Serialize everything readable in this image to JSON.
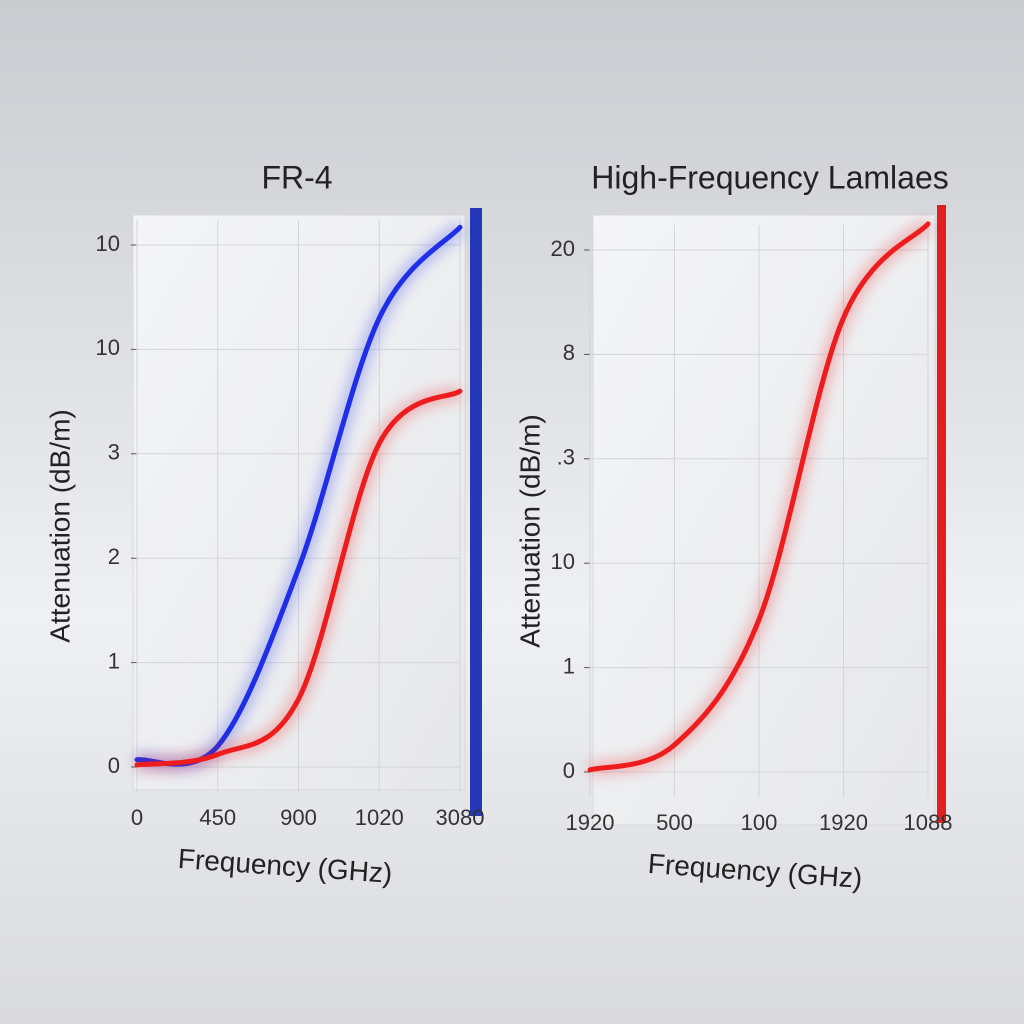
{
  "chart_data": [
    {
      "type": "line",
      "title": "FR-4",
      "x_label": "Frequency (GHz)",
      "y_label": "Attenuation (dB/m)",
      "categories": [
        "0",
        "450",
        "900",
        "1020",
        "3080"
      ],
      "y_labels": [
        "0",
        "1",
        "2",
        "3",
        "10",
        "10"
      ],
      "ylim": [
        0,
        5
      ],
      "series": [
        {
          "color": "#1f2ee8",
          "values": [
            0.07,
            0.2,
            1.9,
            4.3,
            5.17
          ]
        },
        {
          "color": "#ee1c1c",
          "values": [
            0.02,
            0.12,
            0.65,
            3.1,
            3.6
          ]
        }
      ]
    },
    {
      "type": "line",
      "title": "High-Frequency Lamlaes",
      "x_label": "Frequency (GHz)",
      "y_label": "Attenuation (dB/m)",
      "categories": [
        "1920",
        "500",
        "100",
        "1920",
        "1088"
      ],
      "y_labels": [
        "0",
        "1",
        "10",
        ".3",
        "8",
        "20"
      ],
      "ylim": [
        0,
        5
      ],
      "series": [
        {
          "color": "#ee1c1c",
          "values": [
            0.02,
            0.26,
            1.46,
            4.35,
            5.25
          ]
        }
      ]
    }
  ]
}
